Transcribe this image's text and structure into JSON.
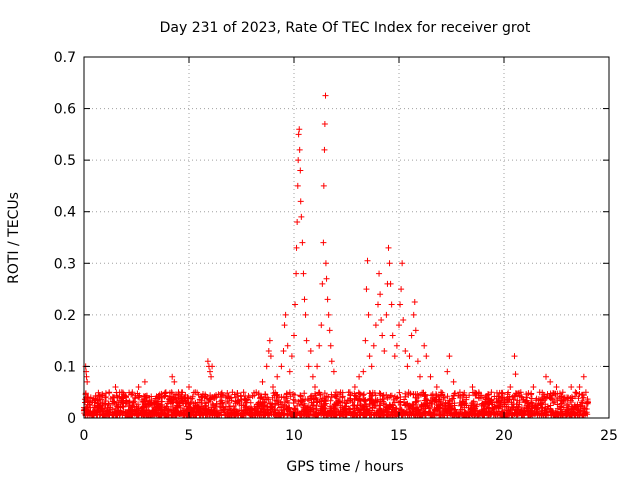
{
  "chart_data": {
    "type": "scatter",
    "title": "Day 231 of 2023, Rate Of TEC Index for receiver grot",
    "xlabel": "GPS time / hours",
    "ylabel": "ROTI / TECUs",
    "xlim": [
      0,
      25
    ],
    "ylim": [
      0,
      0.7
    ],
    "xticks": [
      0,
      5,
      10,
      15,
      20,
      25
    ],
    "xtick_labels": [
      "0",
      "5",
      "10",
      "15",
      "20",
      "25"
    ],
    "yticks": [
      0,
      0.1,
      0.2,
      0.3,
      0.4,
      0.5,
      0.6,
      0.7
    ],
    "ytick_labels": [
      "0",
      "0.1",
      "0.2",
      "0.3",
      "0.4",
      "0.5",
      "0.6",
      "0.7"
    ],
    "grid": true,
    "marker": "plus",
    "color": "#ff0000",
    "series": [
      {
        "points": [
          [
            0.0,
            0.02
          ],
          [
            0.02,
            0.015
          ],
          [
            0.05,
            0.03
          ],
          [
            0.08,
            0.1
          ],
          [
            0.1,
            0.09
          ],
          [
            0.12,
            0.08
          ],
          [
            0.15,
            0.07
          ],
          [
            0.2,
            0.04
          ],
          [
            0.3,
            0.02
          ],
          [
            0.5,
            0.03
          ],
          [
            0.8,
            0.025
          ],
          [
            1.0,
            0.04
          ],
          [
            1.2,
            0.05
          ],
          [
            1.5,
            0.06
          ],
          [
            1.8,
            0.05
          ],
          [
            2.0,
            0.04
          ],
          [
            2.3,
            0.05
          ],
          [
            2.6,
            0.06
          ],
          [
            2.9,
            0.07
          ],
          [
            3.0,
            0.04
          ],
          [
            3.3,
            0.03
          ],
          [
            3.6,
            0.04
          ],
          [
            3.9,
            0.05
          ],
          [
            4.2,
            0.08
          ],
          [
            4.3,
            0.07
          ],
          [
            4.5,
            0.05
          ],
          [
            4.8,
            0.04
          ],
          [
            5.0,
            0.06
          ],
          [
            5.3,
            0.05
          ],
          [
            5.6,
            0.04
          ],
          [
            5.9,
            0.11
          ],
          [
            5.95,
            0.1
          ],
          [
            6.0,
            0.09
          ],
          [
            6.05,
            0.08
          ],
          [
            6.1,
            0.1
          ],
          [
            6.3,
            0.04
          ],
          [
            6.6,
            0.03
          ],
          [
            7.0,
            0.04
          ],
          [
            7.3,
            0.03
          ],
          [
            7.6,
            0.05
          ],
          [
            7.9,
            0.04
          ],
          [
            8.2,
            0.05
          ],
          [
            8.5,
            0.07
          ],
          [
            8.7,
            0.1
          ],
          [
            8.8,
            0.13
          ],
          [
            8.85,
            0.15
          ],
          [
            8.9,
            0.12
          ],
          [
            9.0,
            0.06
          ],
          [
            9.2,
            0.08
          ],
          [
            9.4,
            0.1
          ],
          [
            9.5,
            0.13
          ],
          [
            9.55,
            0.18
          ],
          [
            9.6,
            0.2
          ],
          [
            9.7,
            0.14
          ],
          [
            9.8,
            0.09
          ],
          [
            9.9,
            0.12
          ],
          [
            10.0,
            0.16
          ],
          [
            10.05,
            0.22
          ],
          [
            10.1,
            0.28
          ],
          [
            10.12,
            0.33
          ],
          [
            10.15,
            0.38
          ],
          [
            10.18,
            0.45
          ],
          [
            10.2,
            0.5
          ],
          [
            10.22,
            0.55
          ],
          [
            10.25,
            0.56
          ],
          [
            10.27,
            0.52
          ],
          [
            10.3,
            0.48
          ],
          [
            10.32,
            0.42
          ],
          [
            10.35,
            0.39
          ],
          [
            10.4,
            0.34
          ],
          [
            10.45,
            0.28
          ],
          [
            10.5,
            0.23
          ],
          [
            10.55,
            0.2
          ],
          [
            10.6,
            0.15
          ],
          [
            10.7,
            0.1
          ],
          [
            10.8,
            0.13
          ],
          [
            10.9,
            0.08
          ],
          [
            11.0,
            0.06
          ],
          [
            11.1,
            0.1
          ],
          [
            11.2,
            0.14
          ],
          [
            11.3,
            0.18
          ],
          [
            11.35,
            0.26
          ],
          [
            11.4,
            0.34
          ],
          [
            11.42,
            0.45
          ],
          [
            11.45,
            0.52
          ],
          [
            11.47,
            0.57
          ],
          [
            11.5,
            0.625
          ],
          [
            11.52,
            0.3
          ],
          [
            11.55,
            0.27
          ],
          [
            11.6,
            0.23
          ],
          [
            11.65,
            0.2
          ],
          [
            11.7,
            0.17
          ],
          [
            11.75,
            0.14
          ],
          [
            11.8,
            0.11
          ],
          [
            11.9,
            0.09
          ],
          [
            12.0,
            0.05
          ],
          [
            12.3,
            0.04
          ],
          [
            12.6,
            0.05
          ],
          [
            12.9,
            0.06
          ],
          [
            13.1,
            0.08
          ],
          [
            13.3,
            0.09
          ],
          [
            13.4,
            0.15
          ],
          [
            13.45,
            0.25
          ],
          [
            13.5,
            0.305
          ],
          [
            13.55,
            0.2
          ],
          [
            13.6,
            0.12
          ],
          [
            13.7,
            0.1
          ],
          [
            13.8,
            0.14
          ],
          [
            13.9,
            0.18
          ],
          [
            14.0,
            0.22
          ],
          [
            14.05,
            0.28
          ],
          [
            14.1,
            0.24
          ],
          [
            14.15,
            0.19
          ],
          [
            14.2,
            0.16
          ],
          [
            14.3,
            0.13
          ],
          [
            14.4,
            0.2
          ],
          [
            14.45,
            0.26
          ],
          [
            14.5,
            0.33
          ],
          [
            14.55,
            0.3
          ],
          [
            14.6,
            0.26
          ],
          [
            14.65,
            0.22
          ],
          [
            14.7,
            0.16
          ],
          [
            14.8,
            0.12
          ],
          [
            14.9,
            0.14
          ],
          [
            15.0,
            0.18
          ],
          [
            15.05,
            0.22
          ],
          [
            15.1,
            0.25
          ],
          [
            15.15,
            0.3
          ],
          [
            15.2,
            0.19
          ],
          [
            15.3,
            0.13
          ],
          [
            15.4,
            0.1
          ],
          [
            15.5,
            0.12
          ],
          [
            15.6,
            0.16
          ],
          [
            15.7,
            0.2
          ],
          [
            15.75,
            0.225
          ],
          [
            15.8,
            0.17
          ],
          [
            15.9,
            0.11
          ],
          [
            16.0,
            0.08
          ],
          [
            16.2,
            0.14
          ],
          [
            16.3,
            0.12
          ],
          [
            16.5,
            0.08
          ],
          [
            16.8,
            0.06
          ],
          [
            17.0,
            0.05
          ],
          [
            17.3,
            0.09
          ],
          [
            17.4,
            0.12
          ],
          [
            17.6,
            0.07
          ],
          [
            17.9,
            0.05
          ],
          [
            18.2,
            0.04
          ],
          [
            18.5,
            0.06
          ],
          [
            18.8,
            0.05
          ],
          [
            19.1,
            0.04
          ],
          [
            19.4,
            0.05
          ],
          [
            19.7,
            0.03
          ],
          [
            20.0,
            0.04
          ],
          [
            20.3,
            0.06
          ],
          [
            20.5,
            0.12
          ],
          [
            20.55,
            0.085
          ],
          [
            20.8,
            0.05
          ],
          [
            21.1,
            0.04
          ],
          [
            21.4,
            0.06
          ],
          [
            21.7,
            0.05
          ],
          [
            22.0,
            0.08
          ],
          [
            22.2,
            0.07
          ],
          [
            22.5,
            0.06
          ],
          [
            22.8,
            0.05
          ],
          [
            23.0,
            0.04
          ],
          [
            23.2,
            0.06
          ],
          [
            23.4,
            0.05
          ],
          [
            23.6,
            0.06
          ],
          [
            23.8,
            0.08
          ],
          [
            23.9,
            0.05
          ],
          [
            24.0,
            0.03
          ]
        ]
      }
    ]
  }
}
